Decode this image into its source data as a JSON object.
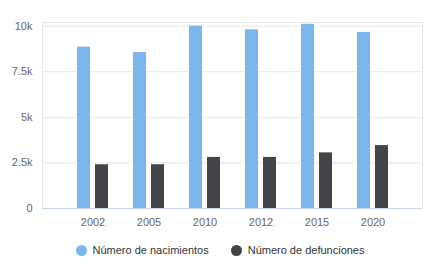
{
  "chart_data": {
    "type": "bar",
    "categories": [
      "2002",
      "2005",
      "2010",
      "2012",
      "2015",
      "2020"
    ],
    "series": [
      {
        "name": "Número de nacimientos",
        "color": "#7cb5ec",
        "values": [
          8850,
          8550,
          10000,
          9800,
          10100,
          9650
        ]
      },
      {
        "name": "Número de defunciones",
        "color": "#434348",
        "values": [
          2400,
          2400,
          2800,
          2800,
          3050,
          3450
        ]
      }
    ],
    "ylim": [
      0,
      10200
    ],
    "yticks": [
      0,
      {
        "value": 2500,
        "label": "2.5k"
      },
      {
        "value": 5000,
        "label": "5k"
      },
      {
        "value": 7500,
        "label": "7.5k"
      },
      {
        "value": 10000,
        "label": "10k"
      }
    ],
    "grid": true,
    "legend": "bottom"
  }
}
